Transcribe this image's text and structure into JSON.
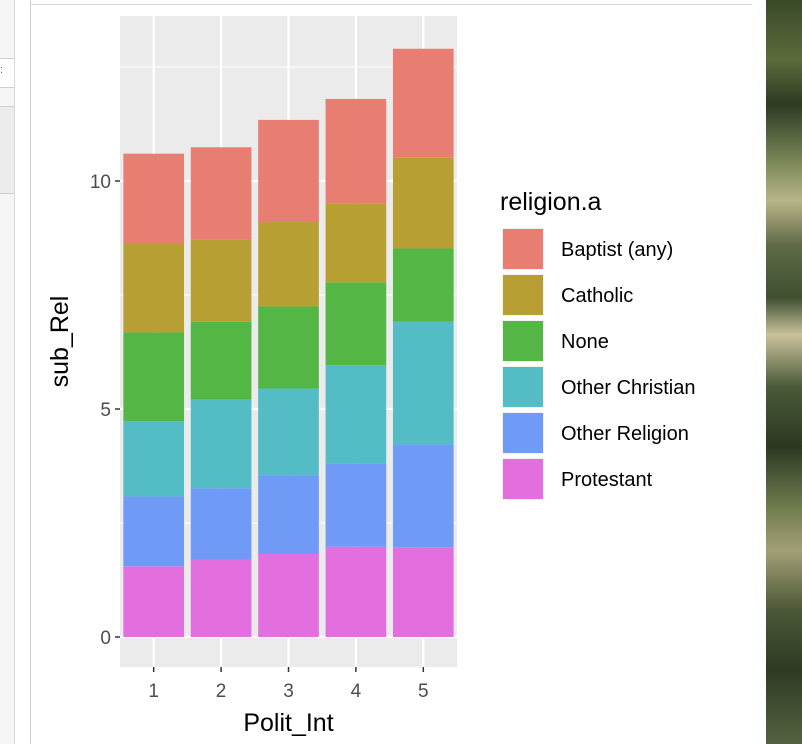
{
  "chart_data": {
    "type": "bar",
    "stacked": true,
    "categories": [
      "1",
      "2",
      "3",
      "4",
      "5"
    ],
    "xlabel": "Polit_Int",
    "ylabel": "sub_Rel",
    "ylim": [
      0,
      13.0
    ],
    "yticks": [
      0,
      5,
      10
    ],
    "grid": true,
    "legend_title": "religion.a",
    "legend_position": "right",
    "series": [
      {
        "name": "Protestant",
        "color": "#E36FDE",
        "values": [
          1.55,
          1.7,
          1.82,
          1.98,
          1.97
        ]
      },
      {
        "name": "Other Religion",
        "color": "#6F9AF6",
        "values": [
          1.53,
          1.56,
          1.73,
          1.83,
          2.25
        ]
      },
      {
        "name": "Other Christian",
        "color": "#53BCC5",
        "values": [
          1.65,
          1.95,
          1.9,
          2.15,
          2.7
        ]
      },
      {
        "name": "None",
        "color": "#54B645",
        "values": [
          1.95,
          1.7,
          1.8,
          1.82,
          1.6
        ]
      },
      {
        "name": "Catholic",
        "color": "#B79F33",
        "values": [
          1.95,
          1.8,
          1.85,
          1.73,
          1.99
        ]
      },
      {
        "name": "Baptist (any)",
        "color": "#E87D72",
        "values": [
          1.97,
          2.03,
          2.24,
          2.29,
          2.39
        ]
      }
    ]
  },
  "ui": {
    "left_glyph": ":"
  }
}
